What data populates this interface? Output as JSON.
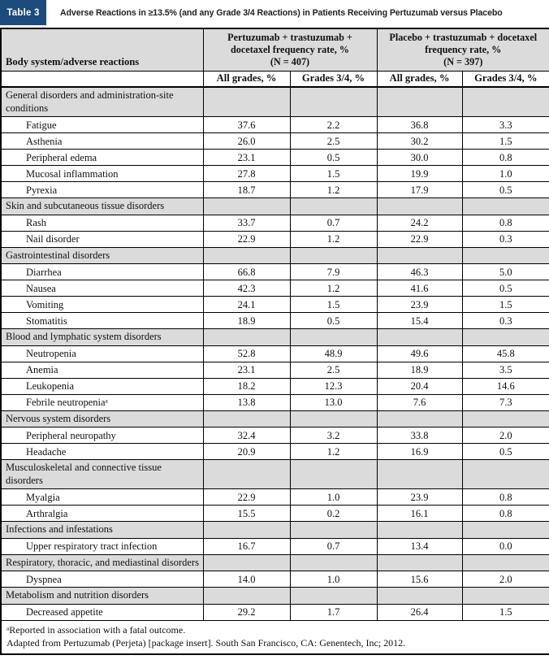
{
  "title_bar": {
    "badge": "Table 3",
    "title": "Adverse Reactions in ≥13.5% (and any Grade 3/4 Reactions) in Patients Receiving Pertuzumab versus Placebo"
  },
  "colors": {
    "badge_navy": "#1c4b7c",
    "section_gray": "#dbdbdb",
    "border_black": "#000000"
  },
  "table": {
    "row_header": "Body system/adverse reactions",
    "groups": [
      {
        "label": "Pertuzumab + trastuzumab + docetaxel frequency rate, %",
        "n": "(N = 407)"
      },
      {
        "label": "Placebo + trastuzumab + docetaxel frequency rate, %",
        "n": "(N = 397)"
      }
    ],
    "subheaders": [
      "All grades, %",
      "Grades 3/4, %",
      "All grades, %",
      "Grades 3/4, %"
    ],
    "sections": [
      {
        "label": "General disorders and administration-site conditions",
        "rows": [
          {
            "label": "Fatigue",
            "values": [
              "37.6",
              "2.2",
              "36.8",
              "3.3"
            ]
          },
          {
            "label": "Asthenia",
            "values": [
              "26.0",
              "2.5",
              "30.2",
              "1.5"
            ]
          },
          {
            "label": "Peripheral edema",
            "values": [
              "23.1",
              "0.5",
              "30.0",
              "0.8"
            ]
          },
          {
            "label": "Mucosal inflammation",
            "values": [
              "27.8",
              "1.5",
              "19.9",
              "1.0"
            ]
          },
          {
            "label": "Pyrexia",
            "values": [
              "18.7",
              "1.2",
              "17.9",
              "0.5"
            ]
          }
        ]
      },
      {
        "label": "Skin and subcutaneous tissue disorders",
        "rows": [
          {
            "label": "Rash",
            "values": [
              "33.7",
              "0.7",
              "24.2",
              "0.8"
            ]
          },
          {
            "label": "Nail disorder",
            "values": [
              "22.9",
              "1.2",
              "22.9",
              "0.3"
            ]
          }
        ]
      },
      {
        "label": "Gastrointestinal disorders",
        "rows": [
          {
            "label": "Diarrhea",
            "values": [
              "66.8",
              "7.9",
              "46.3",
              "5.0"
            ]
          },
          {
            "label": "Nausea",
            "values": [
              "42.3",
              "1.2",
              "41.6",
              "0.5"
            ]
          },
          {
            "label": "Vomiting",
            "values": [
              "24.1",
              "1.5",
              "23.9",
              "1.5"
            ]
          },
          {
            "label": "Stomatitis",
            "values": [
              "18.9",
              "0.5",
              "15.4",
              "0.3"
            ]
          }
        ]
      },
      {
        "label": "Blood and lymphatic system disorders",
        "rows": [
          {
            "label": "Neutropenia",
            "values": [
              "52.8",
              "48.9",
              "49.6",
              "45.8"
            ]
          },
          {
            "label": "Anemia",
            "values": [
              "23.1",
              "2.5",
              "18.9",
              "3.5"
            ]
          },
          {
            "label": "Leukopenia",
            "values": [
              "18.2",
              "12.3",
              "20.4",
              "14.6"
            ]
          },
          {
            "label": "Febrile neutropeniaᵃ",
            "values": [
              "13.8",
              "13.0",
              "7.6",
              "7.3"
            ]
          }
        ]
      },
      {
        "label": "Nervous system disorders",
        "rows": [
          {
            "label": "Peripheral neuropathy",
            "values": [
              "32.4",
              "3.2",
              "33.8",
              "2.0"
            ]
          },
          {
            "label": "Headache",
            "values": [
              "20.9",
              "1.2",
              "16.9",
              "0.5"
            ]
          }
        ]
      },
      {
        "label": "Musculoskeletal and connective tissue disorders",
        "rows": [
          {
            "label": "Myalgia",
            "values": [
              "22.9",
              "1.0",
              "23.9",
              "0.8"
            ]
          },
          {
            "label": "Arthralgia",
            "values": [
              "15.5",
              "0.2",
              "16.1",
              "0.8"
            ]
          }
        ]
      },
      {
        "label": "Infections and infestations",
        "rows": [
          {
            "label": "Upper respiratory tract infection",
            "values": [
              "16.7",
              "0.7",
              "13.4",
              "0.0"
            ]
          }
        ]
      },
      {
        "label": "Respiratory, thoracic, and mediastinal disorders",
        "rows": [
          {
            "label": "Dyspnea",
            "values": [
              "14.0",
              "1.0",
              "15.6",
              "2.0"
            ]
          }
        ]
      },
      {
        "label": "Metabolism and nutrition disorders",
        "rows": [
          {
            "label": "Decreased appetite",
            "values": [
              "29.2",
              "1.7",
              "26.4",
              "1.5"
            ]
          }
        ]
      }
    ],
    "footnotes": [
      "ᵃReported in association with a fatal outcome.",
      "Adapted from Pertuzumab (Perjeta) [package insert]. South San Francisco, CA: Genentech, Inc; 2012."
    ]
  }
}
